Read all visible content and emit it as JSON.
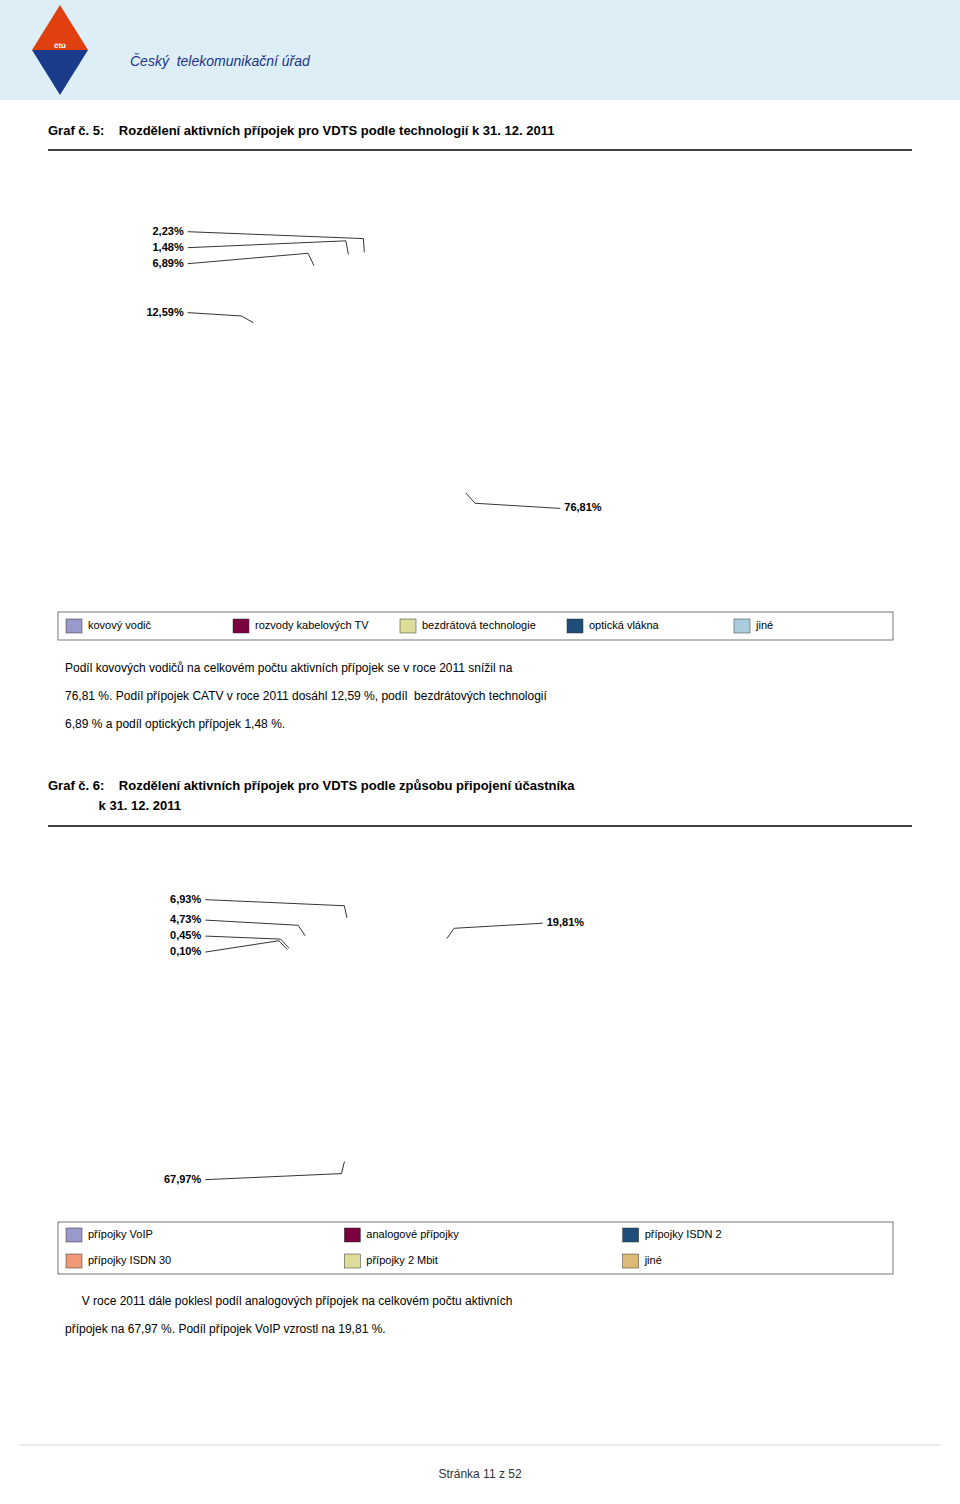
{
  "header_logo": "čtú",
  "header": "Český  telekomunikační úřad",
  "footer": "Stránka 11 z 52",
  "chart_data": [
    {
      "type": "pie",
      "title": "Graf č. 5:    Rozdělení aktivních přípojek pro VDTS podle technologií k 31. 12. 2011",
      "categories": [
        "kovový vodič",
        "rozvody kabelových TV",
        "bezdrátová technologie",
        "optická vlákna",
        "jiné"
      ],
      "values": [
        76.81,
        12.59,
        6.89,
        1.48,
        2.23
      ],
      "value_labels": [
        "76,81%",
        "12,59%",
        "6,89%",
        "1,48%",
        "2,23%"
      ],
      "colors": [
        "#9999cc",
        "#7a0040",
        "#dddd99",
        "#1e4d78",
        "#aaccdd"
      ],
      "data_labels": true,
      "legend": "bottom",
      "annotations": [
        "Podíl kovových vodičů na celkovém počtu aktivních přípojek se v roce 2011 snížil na",
        "76,81 %. Podíl přípojek CATV v roce 2011 dosáhl 12,59 %, podíl  bezdrátových technologií",
        "6,89 % a podíl optických přípojek 1,48 %."
      ]
    },
    {
      "type": "pie",
      "title": "Graf č. 6:    Rozdělení aktivních přípojek pro VDTS podle způsobu připojení účastníka",
      "subtitle": "              k 31. 12. 2011",
      "categories": [
        "přípojky VoIP",
        "analogové přípojky",
        "přípojky ISDN 2",
        "přípojky ISDN 30",
        "přípojky 2 Mbit",
        "jiné"
      ],
      "values": [
        19.81,
        67.97,
        0.1,
        0.45,
        4.73,
        6.93
      ],
      "value_labels": [
        "19,81%",
        "67,97%",
        "0,10%",
        "0,45%",
        "4,73%",
        "6,93%"
      ],
      "colors": [
        "#9999cc",
        "#7a0040",
        "#1e4d78",
        "#ee9977",
        "#dddd99",
        "#ddbb77"
      ],
      "data_labels": true,
      "legend": "bottom",
      "annotations": [
        "     V roce 2011 dále poklesl podíl analogových přípojek na celkovém počtu aktivních",
        "přípojek na 67,97 %. Podíl přípojek VoIP vzrostl na 19,81 %."
      ]
    }
  ]
}
